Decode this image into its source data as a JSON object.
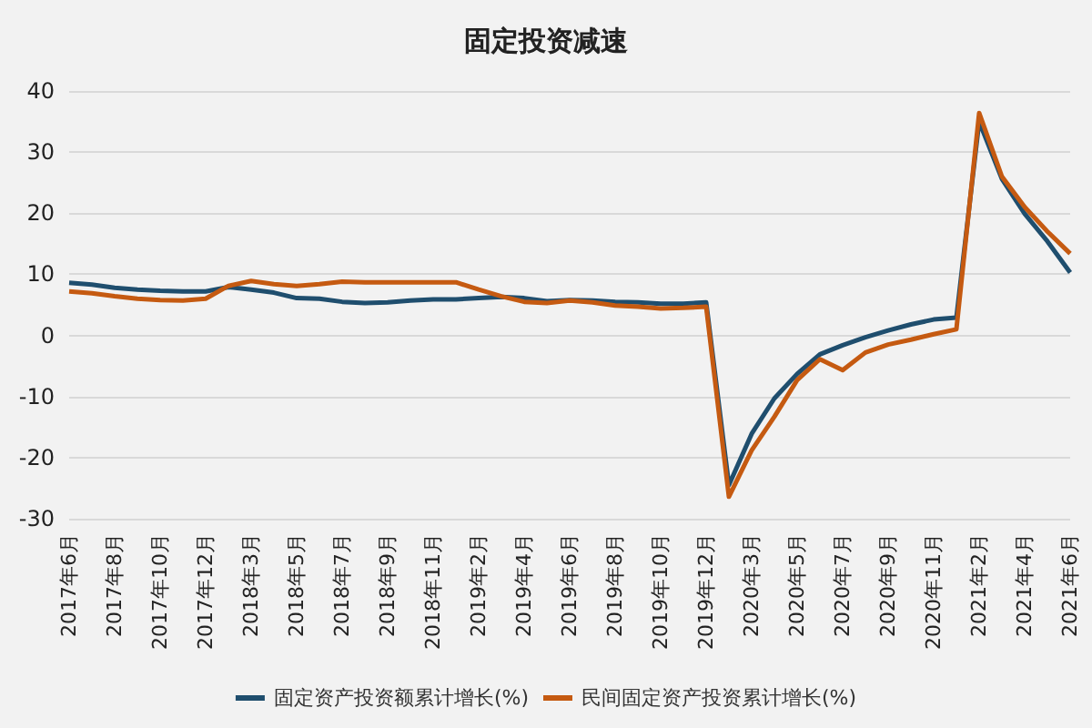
{
  "chart_data": {
    "type": "line",
    "title": "固定投资减速",
    "categories": [
      "2017年6月",
      null,
      "2017年8月",
      null,
      "2017年10月",
      null,
      "2017年12月",
      null,
      "2018年3月",
      null,
      "2018年5月",
      null,
      "2018年7月",
      null,
      "2018年9月",
      null,
      "2018年11月",
      null,
      "2019年2月",
      null,
      "2019年4月",
      null,
      "2019年6月",
      null,
      "2019年8月",
      null,
      "2019年10月",
      null,
      "2019年12月",
      null,
      "2020年3月",
      null,
      "2020年5月",
      null,
      "2020年7月",
      null,
      "2020年9月",
      null,
      "2020年11月",
      null,
      "2021年2月",
      null,
      "2021年4月",
      null,
      "2021年6月"
    ],
    "series": [
      {
        "name": "固定资产投资额累计增长(%)",
        "color": "#1f4e6e",
        "values": [
          8.6,
          8.3,
          7.8,
          7.5,
          7.3,
          7.2,
          7.2,
          7.9,
          7.5,
          7.0,
          6.1,
          6.0,
          5.5,
          5.3,
          5.4,
          5.7,
          5.9,
          5.9,
          6.1,
          6.3,
          6.1,
          5.6,
          5.8,
          5.7,
          5.5,
          5.4,
          5.2,
          5.2,
          5.4,
          -24.5,
          -16.1,
          -10.3,
          -6.3,
          -3.1,
          -1.6,
          -0.3,
          0.8,
          1.8,
          2.6,
          2.9,
          35.0,
          25.6,
          19.9,
          15.4,
          10.3
        ]
      },
      {
        "name": "民间固定资产投资累计增长(%)",
        "color": "#c55a11",
        "values": [
          7.2,
          6.9,
          6.4,
          6.0,
          5.8,
          5.7,
          6.0,
          8.1,
          8.9,
          8.4,
          8.1,
          8.4,
          8.8,
          8.7,
          8.7,
          8.7,
          8.7,
          8.7,
          7.5,
          6.4,
          5.5,
          5.3,
          5.7,
          5.4,
          4.9,
          4.7,
          4.4,
          4.5,
          4.7,
          -26.4,
          -18.8,
          -13.3,
          -7.3,
          -3.9,
          -5.7,
          -2.8,
          -1.5,
          -0.7,
          0.2,
          1.0,
          36.4,
          26.0,
          21.0,
          17.0,
          13.4
        ]
      }
    ],
    "ylim": [
      -30,
      40
    ],
    "yticks": [
      -30,
      -20,
      -10,
      0,
      10,
      20,
      30,
      40
    ],
    "grid": "y",
    "legend": "bottom",
    "marker": "none",
    "line_style": "solid"
  }
}
